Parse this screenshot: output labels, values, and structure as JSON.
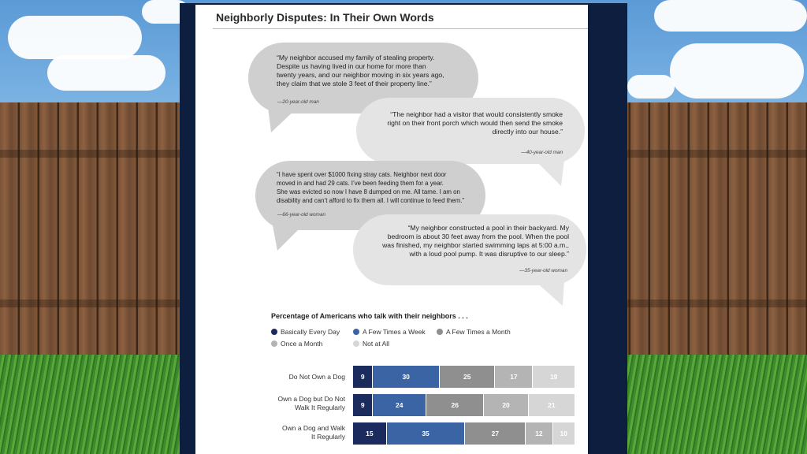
{
  "document": {
    "title": "Neighborly Disputes: In Their Own Words"
  },
  "quotes": [
    {
      "lines": [
        "“My neighbor accused my family of stealing property.",
        "Despite us having lived in our home for more than",
        "twenty years, and our neighbor moving in six years ago,",
        "they claim that we stole 3 feet of their property line.”"
      ],
      "attribution": "—20-year-old man"
    },
    {
      "lines": [
        "“The neighbor had a visitor that would consistently smoke",
        "right on their front porch which would then send the smoke",
        "directly into our house.”"
      ],
      "attribution": "—40-year-old man"
    },
    {
      "lines": [
        "“I have spent over $1000 fixing stray cats. Neighbor next door",
        "moved in and had 29 cats. I’ve been feeding them for a year.",
        "She was evicted so now I have 8 dumped on me. All tame. I am on",
        "disability and can’t afford to fix them all. I will continue to feed them.”"
      ],
      "attribution": "—66-year-old woman"
    },
    {
      "lines": [
        "“My neighbor constructed a pool in their backyard. My",
        "bedroom is about 30 feet away from the pool. When the pool",
        "was finished, my neighbor started swimming laps at 5:00 a.m.,",
        "with a loud pool pump. It was disruptive to our sleep.”"
      ],
      "attribution": "—35-year-old woman"
    }
  ],
  "chart_data": {
    "type": "bar",
    "orientation": "horizontal",
    "stacked": true,
    "title": "Percentage of Americans who talk with their neighbors . . .",
    "categories": [
      [
        "Do Not Own a Dog"
      ],
      [
        "Own a Dog but Do Not",
        "Walk It Regularly"
      ],
      [
        "Own a Dog and Walk",
        "It Regularly"
      ]
    ],
    "series": [
      {
        "name": "Basically Every Day",
        "color": "#1c2b5e",
        "values": [
          9,
          9,
          15
        ]
      },
      {
        "name": "A Few Times a Week",
        "color": "#3a64a4",
        "values": [
          30,
          24,
          35
        ]
      },
      {
        "name": "A Few Times a Month",
        "color": "#8f8f8f",
        "values": [
          25,
          26,
          27
        ]
      },
      {
        "name": "Once a Month",
        "color": "#b4b4b4",
        "values": [
          17,
          20,
          12
        ]
      },
      {
        "name": "Not at All",
        "color": "#d6d6d6",
        "values": [
          19,
          21,
          10
        ]
      }
    ],
    "legend_position": "top",
    "grid": false
  }
}
